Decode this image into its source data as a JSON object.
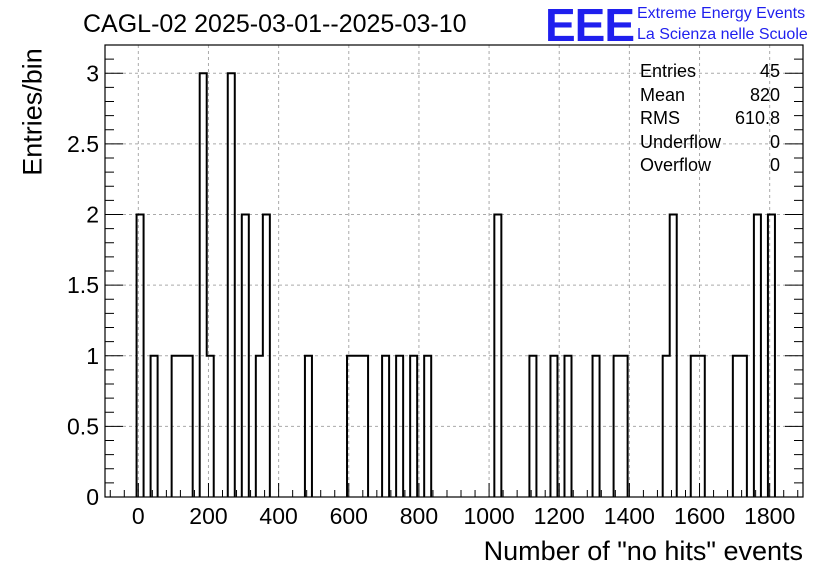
{
  "header": {
    "title": "CAGL-02 2025-03-01--2025-03-10",
    "logo_letters": "EEE",
    "logo_line1": "Extreme Energy Events",
    "logo_line2": "La Scienza nelle Scuole",
    "logo_color": "#1f1fee"
  },
  "stats": {
    "rows": [
      {
        "label": "Entries",
        "value": "45"
      },
      {
        "label": "Mean",
        "value": "820"
      },
      {
        "label": "RMS",
        "value": "610.8"
      },
      {
        "label": "Underflow",
        "value": "0"
      },
      {
        "label": "Overflow",
        "value": "0"
      }
    ]
  },
  "chart_data": {
    "type": "bar",
    "title": "CAGL-02 2025-03-01--2025-03-10",
    "xlabel": "Number of \"no hits\" events",
    "ylabel": "Entries/bin",
    "xlim": [
      -95,
      1895
    ],
    "ylim": [
      0,
      3.2
    ],
    "bin_width": 20,
    "grid": true,
    "stats_box": "top-right",
    "x_ticks": [
      0,
      200,
      400,
      600,
      800,
      1000,
      1200,
      1400,
      1600,
      1800
    ],
    "y_ticks": [
      0,
      0.5,
      1,
      1.5,
      2,
      2.5,
      3
    ],
    "x_tick_labels": [
      "0",
      "200",
      "400",
      "600",
      "800",
      "1000",
      "1200",
      "1400",
      "1600",
      "1800"
    ],
    "y_tick_labels": [
      "0",
      "0.5",
      "1",
      "1.5",
      "2",
      "2.5",
      "3"
    ],
    "bins": [
      {
        "x": -5,
        "value": 2
      },
      {
        "x": 35,
        "value": 1
      },
      {
        "x": 95,
        "value": 1
      },
      {
        "x": 115,
        "value": 1
      },
      {
        "x": 135,
        "value": 1
      },
      {
        "x": 175,
        "value": 3
      },
      {
        "x": 195,
        "value": 1
      },
      {
        "x": 255,
        "value": 3
      },
      {
        "x": 295,
        "value": 2
      },
      {
        "x": 335,
        "value": 1
      },
      {
        "x": 355,
        "value": 2
      },
      {
        "x": 475,
        "value": 1
      },
      {
        "x": 595,
        "value": 1
      },
      {
        "x": 615,
        "value": 1
      },
      {
        "x": 635,
        "value": 1
      },
      {
        "x": 695,
        "value": 1
      },
      {
        "x": 735,
        "value": 1
      },
      {
        "x": 775,
        "value": 1
      },
      {
        "x": 815,
        "value": 1
      },
      {
        "x": 1015,
        "value": 2
      },
      {
        "x": 1115,
        "value": 1
      },
      {
        "x": 1175,
        "value": 1
      },
      {
        "x": 1215,
        "value": 1
      },
      {
        "x": 1295,
        "value": 1
      },
      {
        "x": 1355,
        "value": 1
      },
      {
        "x": 1375,
        "value": 1
      },
      {
        "x": 1495,
        "value": 1
      },
      {
        "x": 1515,
        "value": 2
      },
      {
        "x": 1575,
        "value": 1
      },
      {
        "x": 1595,
        "value": 1
      },
      {
        "x": 1695,
        "value": 1
      },
      {
        "x": 1715,
        "value": 1
      },
      {
        "x": 1755,
        "value": 2
      },
      {
        "x": 1795,
        "value": 2
      }
    ],
    "line_color": "#000000",
    "grid_color": "#aaaaaa"
  }
}
